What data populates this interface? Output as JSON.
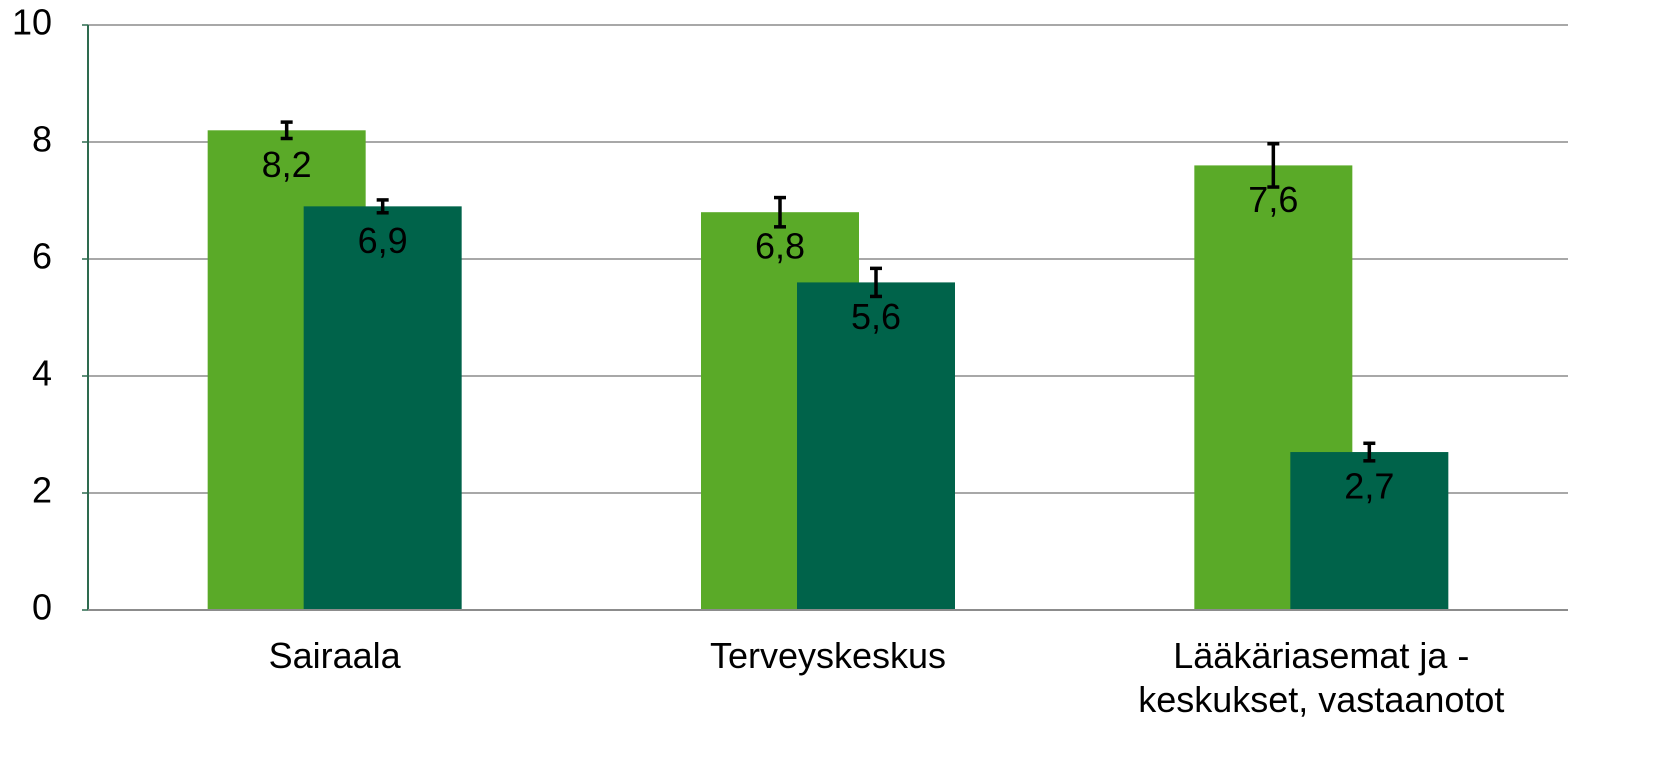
{
  "chart_data": {
    "type": "bar",
    "categories": [
      "Sairaala",
      "Terveyskeskus",
      "Lääkäriasemat ja -\nkeskukset, vastaanotot"
    ],
    "series": [
      {
        "color": "#5aaa28",
        "values": [
          8.2,
          6.8,
          7.6
        ],
        "value_labels": [
          "8,2",
          "6,8",
          "7,6"
        ],
        "errors": [
          0.14,
          0.25,
          0.37
        ]
      },
      {
        "color": "#00634a",
        "values": [
          6.9,
          5.6,
          2.7
        ],
        "value_labels": [
          "6,9",
          "5,6",
          "2,7"
        ],
        "errors": [
          0.11,
          0.24,
          0.15
        ]
      }
    ],
    "ylim": [
      0,
      10
    ],
    "yticks": [
      0,
      2,
      4,
      6,
      8,
      10
    ],
    "grid": true
  }
}
